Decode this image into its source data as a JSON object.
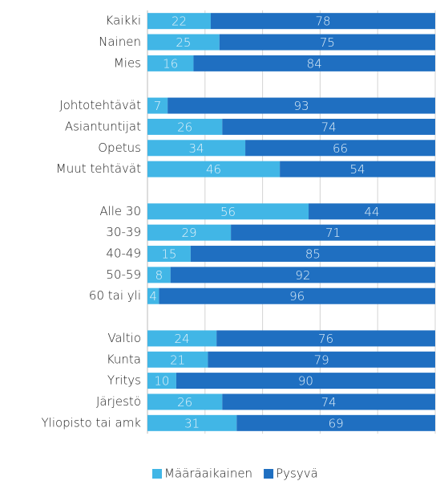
{
  "chart_data": {
    "type": "stacked-bar-horizontal",
    "categories": [
      "Kaikki",
      "Nainen",
      "Mies",
      null,
      "Johtotehtävät",
      "Asiantuntijat",
      "Opetus",
      "Muut tehtävät",
      null,
      "Alle 30",
      "30-39",
      "40-49",
      "50-59",
      "60 tai yli",
      null,
      "Valtio",
      "Kunta",
      "Yritys",
      "Järjestö",
      "Yliopisto tai amk"
    ],
    "series": [
      {
        "name": "Määräaikainen",
        "color": "#41b6e6",
        "values": [
          22,
          25,
          16,
          null,
          7,
          26,
          34,
          46,
          null,
          56,
          29,
          15,
          8,
          4,
          null,
          24,
          21,
          10,
          26,
          31
        ]
      },
      {
        "name": "Pysyvä",
        "color": "#1f6fc1",
        "values": [
          78,
          75,
          84,
          null,
          93,
          74,
          66,
          54,
          null,
          44,
          71,
          85,
          92,
          96,
          null,
          76,
          79,
          90,
          74,
          69
        ]
      }
    ],
    "xlim": [
      0,
      100
    ],
    "xticks": [
      0,
      20,
      40,
      60,
      80,
      100
    ],
    "grid": true,
    "legend": "bottom"
  }
}
